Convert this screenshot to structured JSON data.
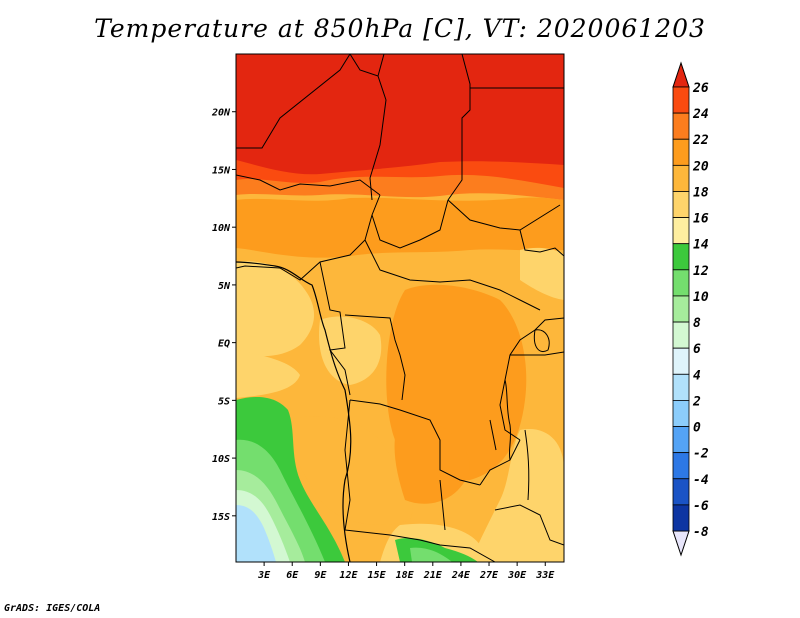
{
  "title": "Temperature at 850hPa [C], VT: 2020061203",
  "footer": "GrADS: IGES/COLA",
  "map": {
    "lon_ticks": [
      "3E",
      "6E",
      "9E",
      "12E",
      "15E",
      "18E",
      "21E",
      "24E",
      "27E",
      "30E",
      "33E"
    ],
    "lat_ticks": [
      "20N",
      "15N",
      "10N",
      "5N",
      "EQ",
      "5S",
      "10S",
      "15S"
    ],
    "lon_range": [
      0,
      35
    ],
    "lat_range": [
      -19,
      25
    ]
  },
  "colorbar": {
    "labels": [
      "26",
      "24",
      "22",
      "20",
      "18",
      "16",
      "14",
      "12",
      "10",
      "8",
      "6",
      "4",
      "2",
      "0",
      "-2",
      "-4",
      "-6",
      "-8"
    ],
    "colors": [
      "#e32610",
      "#fa4b10",
      "#fc7d1e",
      "#fd9c1d",
      "#fdb73b",
      "#fed46b",
      "#feeea0",
      "#3cc93c",
      "#74de6e",
      "#a6ec9c",
      "#d3f8d2",
      "#dff4fb",
      "#b1e1fb",
      "#8ccdfb",
      "#54a3f5",
      "#2d78e5",
      "#1a53c5",
      "#0d35a2",
      "#08207a"
    ],
    "top_color": "#e32610",
    "bottom_color": "#e8e6fb"
  }
}
